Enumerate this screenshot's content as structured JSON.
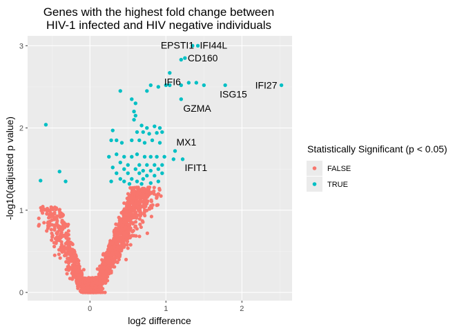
{
  "chart_data": {
    "type": "scatter",
    "title_lines": [
      "Genes with the highest fold change between",
      "HIV-1 infected and HIV negative individuals"
    ],
    "xlabel": "log2 difference",
    "ylabel": "-log10(adjusted p value)",
    "xlim": [
      -0.82,
      2.66
    ],
    "ylim": [
      -0.1,
      3.12
    ],
    "x_ticks": [
      0,
      1,
      2
    ],
    "y_ticks": [
      0,
      1,
      2,
      3
    ],
    "grid": true,
    "legend": {
      "title": "Statistically Significant (p < 0.05)",
      "position": "right",
      "entries": [
        {
          "label": "FALSE",
          "color": "#F8766D"
        },
        {
          "label": "TRUE",
          "color": "#00BFC4"
        }
      ]
    },
    "colors": {
      "false": "#F8766D",
      "true": "#00BFC4",
      "panel": "#EBEBEB",
      "grid_major": "#FFFFFF"
    },
    "series": [
      {
        "name": "FALSE",
        "color": "#F8766D",
        "note": "approx. 1500 genes, -log10(adj p) < 1.3, log2 difference mostly between -0.7 and 0.7"
      },
      {
        "name": "TRUE",
        "color": "#00BFC4"
      }
    ],
    "significant_points": [
      [
        1.42,
        3.0
      ],
      [
        1.35,
        3.0
      ],
      [
        1.25,
        2.85
      ],
      [
        1.2,
        2.83
      ],
      [
        1.05,
        2.67
      ],
      [
        2.52,
        2.52
      ],
      [
        1.78,
        2.52
      ],
      [
        0.8,
        2.52
      ],
      [
        0.9,
        2.5
      ],
      [
        1.0,
        2.52
      ],
      [
        1.05,
        2.52
      ],
      [
        1.2,
        2.52
      ],
      [
        1.3,
        2.55
      ],
      [
        1.4,
        2.55
      ],
      [
        1.5,
        2.52
      ],
      [
        0.75,
        2.45
      ],
      [
        0.4,
        2.45
      ],
      [
        1.2,
        2.35
      ],
      [
        0.55,
        2.35
      ],
      [
        0.6,
        2.3
      ],
      [
        0.58,
        2.2
      ],
      [
        0.6,
        2.15
      ],
      [
        0.58,
        2.1
      ],
      [
        -0.58,
        2.04
      ],
      [
        0.68,
        2.03
      ],
      [
        0.75,
        2.0
      ],
      [
        0.85,
        2.02
      ],
      [
        0.92,
        2.0
      ],
      [
        0.62,
        1.95
      ],
      [
        0.7,
        1.95
      ],
      [
        0.78,
        1.93
      ],
      [
        0.88,
        1.94
      ],
      [
        0.95,
        1.95
      ],
      [
        0.3,
        1.97
      ],
      [
        0.28,
        1.85
      ],
      [
        0.35,
        1.85
      ],
      [
        0.42,
        1.82
      ],
      [
        0.55,
        1.85
      ],
      [
        0.65,
        1.85
      ],
      [
        0.72,
        1.82
      ],
      [
        0.82,
        1.85
      ],
      [
        0.92,
        1.82
      ],
      [
        1.12,
        1.72
      ],
      [
        0.25,
        1.65
      ],
      [
        0.35,
        1.68
      ],
      [
        0.45,
        1.65
      ],
      [
        0.55,
        1.65
      ],
      [
        0.62,
        1.68
      ],
      [
        0.72,
        1.65
      ],
      [
        0.8,
        1.65
      ],
      [
        0.88,
        1.65
      ],
      [
        0.98,
        1.65
      ],
      [
        1.22,
        1.62
      ],
      [
        1.1,
        1.62
      ],
      [
        0.4,
        1.58
      ],
      [
        0.5,
        1.55
      ],
      [
        0.65,
        1.55
      ],
      [
        0.75,
        1.55
      ],
      [
        0.85,
        1.55
      ],
      [
        0.95,
        1.55
      ],
      [
        0.3,
        1.52
      ],
      [
        0.45,
        1.5
      ],
      [
        0.6,
        1.5
      ],
      [
        0.7,
        1.48
      ],
      [
        0.8,
        1.48
      ],
      [
        0.9,
        1.5
      ],
      [
        -0.4,
        1.47
      ],
      [
        0.35,
        1.45
      ],
      [
        0.5,
        1.45
      ],
      [
        0.65,
        1.45
      ],
      [
        0.75,
        1.42
      ],
      [
        0.85,
        1.42
      ],
      [
        0.95,
        1.45
      ],
      [
        -0.65,
        1.36
      ],
      [
        -0.32,
        1.35
      ],
      [
        0.28,
        1.35
      ],
      [
        0.4,
        1.38
      ],
      [
        0.45,
        1.35
      ],
      [
        0.55,
        1.38
      ],
      [
        0.62,
        1.35
      ],
      [
        0.7,
        1.38
      ],
      [
        0.52,
        1.32
      ],
      [
        0.68,
        1.32
      ],
      [
        0.8,
        1.33
      ],
      [
        0.9,
        1.35
      ]
    ],
    "labeled_genes": [
      {
        "gene": "EPSTI1",
        "x": 1.35,
        "y": 3.0
      },
      {
        "gene": "IFI44L",
        "x": 1.42,
        "y": 3.0
      },
      {
        "gene": "CD160",
        "x": 1.25,
        "y": 2.85
      },
      {
        "gene": "IFI6",
        "x": 1.05,
        "y": 2.67
      },
      {
        "gene": "IFI27",
        "x": 2.52,
        "y": 2.52
      },
      {
        "gene": "ISG15",
        "x": 1.78,
        "y": 2.52
      },
      {
        "gene": "GZMA",
        "x": 1.2,
        "y": 2.35
      },
      {
        "gene": "MX1",
        "x": 1.12,
        "y": 1.72
      },
      {
        "gene": "IFIT1",
        "x": 1.22,
        "y": 1.62
      }
    ]
  }
}
